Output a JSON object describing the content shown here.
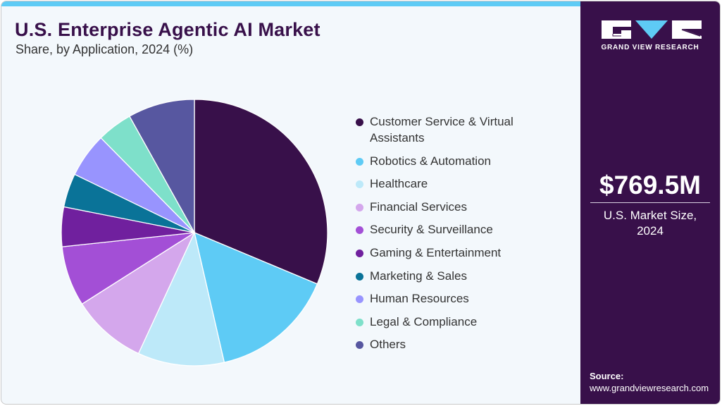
{
  "header": {
    "title": "U.S. Enterprise Agentic AI Market",
    "subtitle": "Share, by Application, 2024 (%)"
  },
  "side_panel": {
    "brand": "GRAND VIEW RESEARCH",
    "market_value": "$769.5M",
    "market_label_line1": "U.S. Market Size,",
    "market_label_line2": "2024",
    "source_label": "Source:",
    "source_url": "www.grandviewresearch.com"
  },
  "colors": {
    "accent_bar": "#5ecbf5",
    "panel": "#38104a",
    "background": "#f3f8fc"
  },
  "legend": [
    {
      "label_line1": "Customer Service & Virtual",
      "label_line2": "Assistants",
      "color": "#38104a"
    },
    {
      "label_line1": "Robotics & Automation",
      "color": "#5ecbf5"
    },
    {
      "label_line1": "Healthcare",
      "color": "#bde9f9"
    },
    {
      "label_line1": "Financial Services",
      "color": "#d4a7ec"
    },
    {
      "label_line1": "Security & Surveillance",
      "color": "#a34fd6"
    },
    {
      "label_line1": "Gaming & Entertainment",
      "color": "#70209e"
    },
    {
      "label_line1": "Marketing & Sales",
      "color": "#0a7398"
    },
    {
      "label_line1": "Human Resources",
      "color": "#9894fe"
    },
    {
      "label_line1": "Legal & Compliance",
      "color": "#7ee0ca"
    },
    {
      "label_line1": "Others",
      "color": "#5757a0"
    }
  ],
  "chart_data": {
    "type": "pie",
    "title": "U.S. Enterprise Agentic AI Market",
    "subtitle": "Share, by Application, 2024 (%)",
    "categories": [
      "Customer Service & Virtual Assistants",
      "Robotics & Automation",
      "Healthcare",
      "Financial Services",
      "Security & Surveillance",
      "Gaming & Entertainment",
      "Marketing & Sales",
      "Human Resources",
      "Legal & Compliance",
      "Others"
    ],
    "values": [
      31.3,
      15.1,
      10.5,
      9.1,
      7.3,
      4.8,
      4.1,
      5.4,
      4.3,
      8.1
    ],
    "colors": [
      "#38104a",
      "#5ecbf5",
      "#bde9f9",
      "#d4a7ec",
      "#a34fd6",
      "#70209e",
      "#0a7398",
      "#9894fe",
      "#7ee0ca",
      "#5757a0"
    ],
    "start_angle": "12 o'clock, clockwise",
    "legend_position": "right",
    "annotation": "$769.5M U.S. Market Size, 2024"
  }
}
